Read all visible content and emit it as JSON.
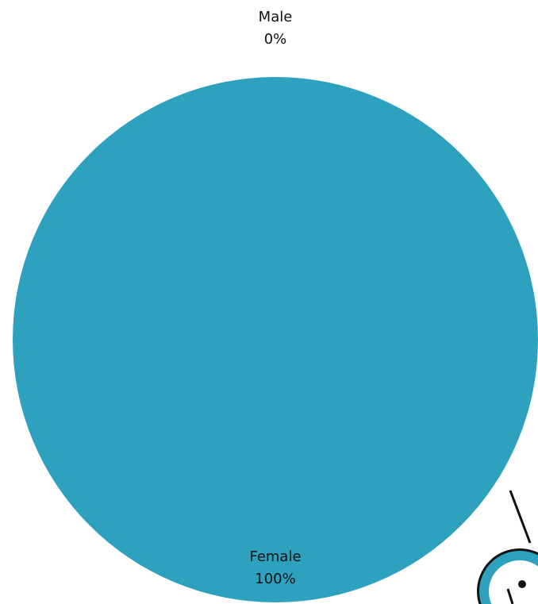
{
  "chart_data": {
    "type": "pie",
    "categories": [
      "Male",
      "Female"
    ],
    "values": [
      0,
      100
    ],
    "value_labels": [
      "0%",
      "100%"
    ],
    "color": "#2ea1bf"
  }
}
